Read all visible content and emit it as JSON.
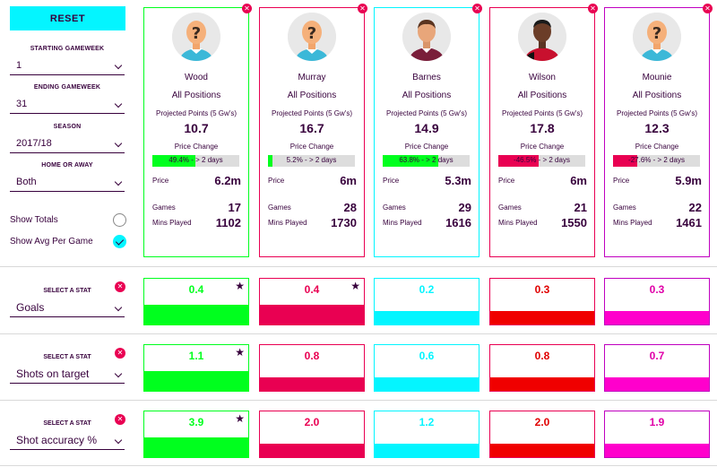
{
  "sidebar": {
    "reset_label": "RESET",
    "filters": [
      {
        "label": "STARTING GAMEWEEK",
        "value": "1"
      },
      {
        "label": "ENDING GAMEWEEK",
        "value": "31"
      },
      {
        "label": "SEASON",
        "value": "2017/18"
      },
      {
        "label": "HOME OR AWAY",
        "value": "Both"
      }
    ],
    "toggles": [
      {
        "label": "Show Totals",
        "checked": false
      },
      {
        "label": "Show Avg Per Game",
        "checked": true
      }
    ]
  },
  "card_labels": {
    "projected": "Projected Points (5 Gw's)",
    "price_change": "Price Change",
    "price": "Price",
    "games": "Games",
    "mins": "Mins Played"
  },
  "players": [
    {
      "name": "Wood",
      "position": "All Positions",
      "projected_points": "10.7",
      "price_change_text": "49.4% - > 2 days",
      "price_change_pct": 49.4,
      "price": "6.2m",
      "games": "17",
      "mins_played": "1102",
      "border_color": "#00ff1e",
      "avatar": "placeholder-avatar-icon"
    },
    {
      "name": "Murray",
      "position": "All Positions",
      "projected_points": "16.7",
      "price_change_text": "5.2% - > 2 days",
      "price_change_pct": 5.2,
      "price": "6m",
      "games": "28",
      "mins_played": "1730",
      "border_color": "#e90052",
      "avatar": "placeholder-avatar-icon"
    },
    {
      "name": "Barnes",
      "position": "All Positions",
      "projected_points": "14.9",
      "price_change_text": "63.8% - > 2 days",
      "price_change_pct": 63.8,
      "price": "5.3m",
      "games": "29",
      "mins_played": "1616",
      "border_color": "#04f5ff",
      "avatar": "player-photo-barnes"
    },
    {
      "name": "Wilson",
      "position": "All Positions",
      "projected_points": "17.8",
      "price_change_text": "-46.5% - > 2 days",
      "price_change_pct": -46.5,
      "price": "6m",
      "games": "21",
      "mins_played": "1550",
      "border_color": "#e90052",
      "avatar": "player-photo-wilson"
    },
    {
      "name": "Mounie",
      "position": "All Positions",
      "projected_points": "12.3",
      "price_change_text": "-27.6% - > 2 days",
      "price_change_pct": -27.6,
      "price": "5.9m",
      "games": "22",
      "mins_played": "1461",
      "border_color": "#c000c0",
      "avatar": "placeholder-avatar-icon"
    }
  ],
  "stats": [
    {
      "label": "SELECT A STAT",
      "selected": "Goals",
      "values": [
        "0.4",
        "0.4",
        "0.2",
        "0.3",
        "0.3"
      ],
      "starred": [
        true,
        true,
        false,
        false,
        false
      ]
    },
    {
      "label": "SELECT A STAT",
      "selected": "Shots on target",
      "values": [
        "1.1",
        "0.8",
        "0.6",
        "0.8",
        "0.7"
      ],
      "starred": [
        true,
        false,
        false,
        false,
        false
      ]
    },
    {
      "label": "SELECT A STAT",
      "selected": "Shot accuracy %",
      "values": [
        "3.9",
        "2.0",
        "1.2",
        "2.0",
        "1.9"
      ],
      "starred": [
        true,
        false,
        false,
        false,
        false
      ]
    }
  ],
  "stat_colors": {
    "fill": [
      "#00ff1e",
      "#e90052",
      "#04f5ff",
      "#f00000",
      "#ff00cc"
    ],
    "text": [
      "#00ff1e",
      "#e90052",
      "#04f5ff",
      "#e00000",
      "#e000a8"
    ],
    "border": [
      "#00ff1e",
      "#e90052",
      "#04f5ff",
      "#e90052",
      "#c000c0"
    ]
  },
  "price_bar_colors": {
    "positive": "#00ff1e",
    "negative": "#e90052"
  },
  "close_glyph": "✕",
  "star_glyph": "★"
}
